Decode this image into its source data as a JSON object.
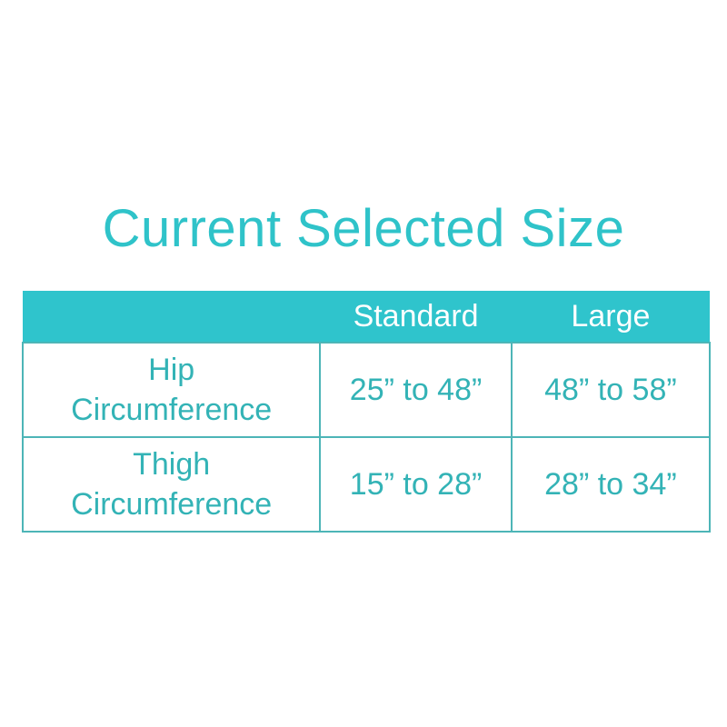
{
  "title": "Current Selected Size",
  "table": {
    "headers": [
      "",
      "Standard",
      "Large"
    ],
    "rows": [
      {
        "label_line1": "Hip",
        "label_line2": "Circumference",
        "standard": "25” to 48”",
        "large": "48” to 58”"
      },
      {
        "label_line1": "Thigh",
        "label_line2": "Circumference",
        "standard": "15” to 28”",
        "large": "28” to 34”"
      }
    ]
  },
  "colors": {
    "accent": "#2fc4cc",
    "border": "#4db5b7",
    "text": "#33b3b6"
  }
}
